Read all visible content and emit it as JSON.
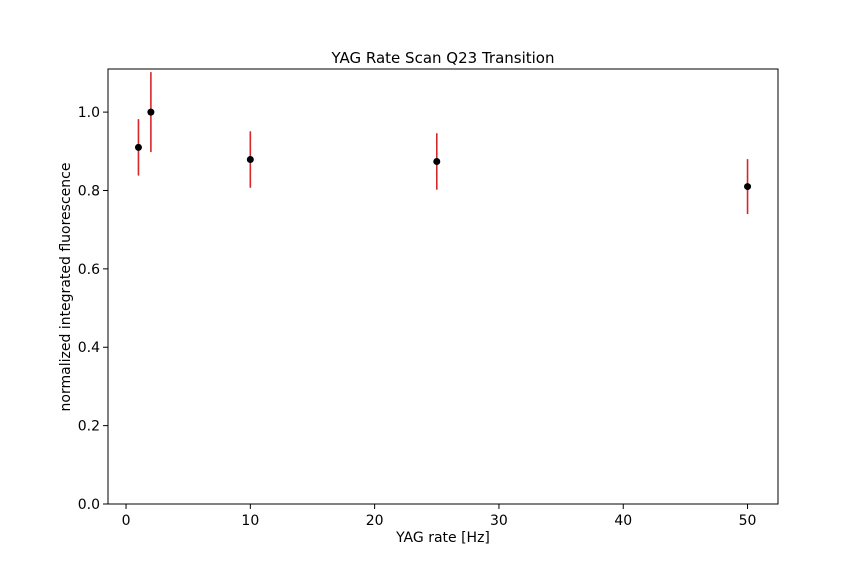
{
  "chart_data": {
    "type": "scatter",
    "title": "YAG Rate Scan Q23 Transition",
    "xlabel": "YAG rate [Hz]",
    "ylabel": "normalized integrated fluorescence",
    "xlim": [
      -1.45,
      52.45
    ],
    "ylim": [
      0.0,
      1.11
    ],
    "xticks": [
      0,
      10,
      20,
      30,
      40,
      50
    ],
    "yticks": [
      0.0,
      0.2,
      0.4,
      0.6,
      0.8,
      1.0
    ],
    "xtick_labels": [
      "0",
      "10",
      "20",
      "30",
      "40",
      "50"
    ],
    "ytick_labels": [
      "0.0",
      "0.2",
      "0.4",
      "0.6",
      "0.8",
      "1.0"
    ],
    "points": [
      {
        "x": 1,
        "y": 0.91,
        "err": 0.072
      },
      {
        "x": 2,
        "y": 1.0,
        "err": 0.102
      },
      {
        "x": 10,
        "y": 0.879,
        "err": 0.072
      },
      {
        "x": 25,
        "y": 0.874,
        "err": 0.072
      },
      {
        "x": 50,
        "y": 0.81,
        "err": 0.07
      }
    ],
    "marker_color": "#000000",
    "errorbar_color": "#d62728",
    "grid": false,
    "legend": "none"
  }
}
